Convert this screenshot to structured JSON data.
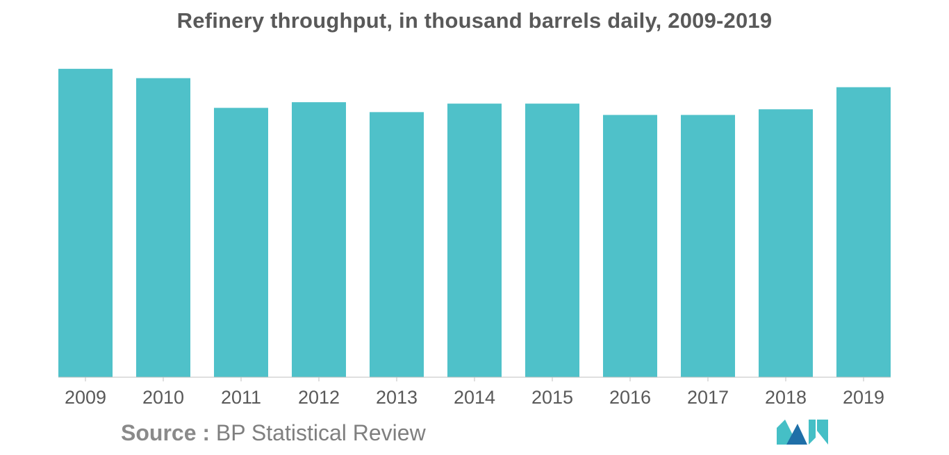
{
  "chart_data": {
    "type": "bar",
    "title": "Refinery throughput, in thousand barrels daily, 2009-2019",
    "categories": [
      "2009",
      "2010",
      "2011",
      "2012",
      "2013",
      "2014",
      "2015",
      "2016",
      "2017",
      "2018",
      "2019"
    ],
    "values": [
      1090,
      1057,
      952,
      972,
      937,
      967,
      967,
      927,
      927,
      947,
      1025
    ],
    "ylim": [
      0,
      1100
    ],
    "grid": false,
    "legend": "none",
    "bar_color": "#4fc1c9"
  },
  "source": {
    "label": "Source :",
    "text": "BP Statistical Review"
  },
  "logo": {
    "icon": "mordor-intelligence-logo",
    "colors": [
      "#1f6fa8",
      "#45bfc6"
    ]
  }
}
